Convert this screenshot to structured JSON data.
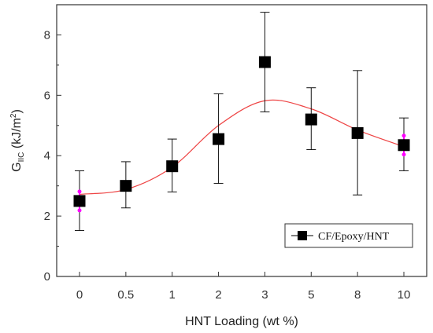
{
  "chart_data": {
    "type": "scatter",
    "categories": [
      "0",
      "0.5",
      "1",
      "2",
      "3",
      "5",
      "8",
      "10"
    ],
    "series": [
      {
        "name": "CF/Epoxy/HNT",
        "values": [
          2.5,
          3.0,
          3.65,
          4.55,
          7.1,
          5.2,
          4.75,
          4.35
        ],
        "error_upper": [
          3.5,
          3.8,
          4.55,
          6.05,
          8.75,
          6.25,
          6.82,
          5.25
        ],
        "error_lower": [
          1.52,
          2.27,
          2.8,
          3.08,
          5.45,
          4.2,
          2.7,
          3.5
        ],
        "marker": "square",
        "color": "#000000"
      }
    ],
    "fit_curve": {
      "color": "#ee4444",
      "values": [
        2.72,
        2.88,
        3.62,
        5.0,
        5.82,
        5.55,
        4.85,
        4.3
      ]
    },
    "endpoint_highlight_color": "#ff00ff",
    "xlabel": "HNT Loading (wt %)",
    "ylabel_main": "G",
    "ylabel_sub": "IIC",
    "ylabel_unit_open": " (kJ/m",
    "ylabel_sup": "2",
    "ylabel_unit_close": ")",
    "ylim": [
      0,
      9
    ],
    "yticks": [
      "0",
      "2",
      "4",
      "6",
      "8"
    ],
    "legend_position": "bottom-right",
    "grid": false
  }
}
